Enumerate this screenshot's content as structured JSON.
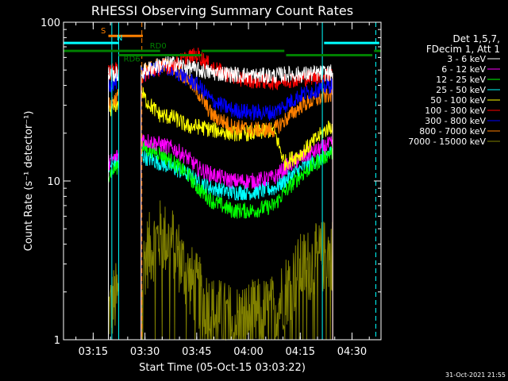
{
  "chart_data": {
    "type": "line",
    "title": "RHESSI Observing Summary Count Rates",
    "xlabel": "Start Time (05-Oct-15 03:03:22)",
    "ylabel": "Count Rate (s⁻¹ detector⁻¹)",
    "x_unit": "minutes",
    "xlim": [
      3.0,
      95.0
    ],
    "ylim": [
      1,
      100
    ],
    "yscale": "log",
    "xticks": [
      {
        "x": 11.6,
        "label": "03:15"
      },
      {
        "x": 26.6,
        "label": "03:30"
      },
      {
        "x": 41.6,
        "label": "03:45"
      },
      {
        "x": 56.6,
        "label": "04:00"
      },
      {
        "x": 71.6,
        "label": "04:15"
      },
      {
        "x": 86.6,
        "label": "04:30"
      }
    ],
    "yticks": [
      {
        "y": 1,
        "label": "1"
      },
      {
        "y": 10,
        "label": "10"
      },
      {
        "y": 100,
        "label": "100"
      }
    ],
    "legend_title": [
      "Det 1,5,7,",
      "FDecim 1, Att 1"
    ],
    "legend_placement": "right",
    "timestamp": "31-Oct-2021 21:55",
    "series": [
      {
        "name": "3 - 6 keV",
        "color": "#ffffff",
        "base": 47,
        "points": [
          [
            16.0,
            47
          ],
          [
            18.0,
            47
          ],
          [
            24.5,
            47
          ],
          [
            27,
            50
          ],
          [
            31,
            54
          ],
          [
            35,
            55
          ],
          [
            39,
            52
          ],
          [
            42,
            50
          ],
          [
            46,
            48
          ],
          [
            52,
            47
          ],
          [
            58,
            46
          ],
          [
            64,
            46
          ],
          [
            67,
            47
          ],
          [
            72,
            47
          ],
          [
            80,
            48
          ]
        ]
      },
      {
        "name": "6 - 12 keV",
        "color": "#ff00ff",
        "base": 15,
        "points": [
          [
            16.0,
            13
          ],
          [
            18.0,
            14
          ],
          [
            24.5,
            19
          ],
          [
            27,
            18
          ],
          [
            31,
            17
          ],
          [
            35,
            16
          ],
          [
            39,
            14
          ],
          [
            42,
            12
          ],
          [
            46,
            11
          ],
          [
            52,
            10
          ],
          [
            58,
            10
          ],
          [
            64,
            10.5
          ],
          [
            67,
            12
          ],
          [
            72,
            14
          ],
          [
            80,
            17
          ]
        ]
      },
      {
        "name": "12 - 25 keV",
        "color": "#00ff00",
        "base": 9,
        "points": [
          [
            16.0,
            11
          ],
          [
            18.0,
            12
          ],
          [
            24.5,
            17
          ],
          [
            27,
            16
          ],
          [
            31,
            15
          ],
          [
            35,
            13
          ],
          [
            39,
            11
          ],
          [
            42,
            9
          ],
          [
            46,
            7.5
          ],
          [
            52,
            6.5
          ],
          [
            58,
            6.5
          ],
          [
            64,
            7
          ],
          [
            67,
            8.5
          ],
          [
            72,
            11
          ],
          [
            80,
            15
          ]
        ]
      },
      {
        "name": "25 - 50 keV",
        "color": "#00ffff",
        "base": 10,
        "points": [
          [
            16.0,
            12
          ],
          [
            18.0,
            13
          ],
          [
            24.5,
            15
          ],
          [
            27,
            14
          ],
          [
            31,
            13
          ],
          [
            35,
            12
          ],
          [
            39,
            11
          ],
          [
            42,
            10
          ],
          [
            46,
            9
          ],
          [
            52,
            8.5
          ],
          [
            58,
            8.5
          ],
          [
            64,
            9
          ],
          [
            67,
            10
          ],
          [
            72,
            12
          ],
          [
            80,
            15
          ]
        ]
      },
      {
        "name": "50 - 100 keV",
        "color": "#ffff00",
        "base": 20,
        "points": [
          [
            16.0,
            28
          ],
          [
            18.0,
            30
          ],
          [
            24.5,
            40
          ],
          [
            27,
            32
          ],
          [
            31,
            26
          ],
          [
            35,
            25
          ],
          [
            39,
            22
          ],
          [
            42,
            22
          ],
          [
            46,
            21
          ],
          [
            52,
            20
          ],
          [
            58,
            20
          ],
          [
            64,
            21
          ],
          [
            67,
            13
          ],
          [
            72,
            15
          ],
          [
            80,
            22
          ]
        ]
      },
      {
        "name": "100 - 300 keV",
        "color": "#ff0000",
        "base": 50,
        "points": [
          [
            16.0,
            48
          ],
          [
            18.0,
            50
          ],
          [
            24.5,
            42
          ],
          [
            27,
            48
          ],
          [
            31,
            52
          ],
          [
            35,
            54
          ],
          [
            39,
            60
          ],
          [
            42,
            62
          ],
          [
            46,
            52
          ],
          [
            52,
            45
          ],
          [
            58,
            43
          ],
          [
            64,
            42
          ],
          [
            67,
            43
          ],
          [
            72,
            44
          ],
          [
            80,
            47
          ]
        ]
      },
      {
        "name": "300 - 800 keV",
        "color": "#0000ff",
        "base": 30,
        "points": [
          [
            16.0,
            40
          ],
          [
            18.0,
            42
          ],
          [
            24.5,
            45
          ],
          [
            27,
            48
          ],
          [
            31,
            52
          ],
          [
            35,
            50
          ],
          [
            39,
            44
          ],
          [
            42,
            40
          ],
          [
            46,
            32
          ],
          [
            52,
            28
          ],
          [
            58,
            27
          ],
          [
            64,
            27
          ],
          [
            67,
            30
          ],
          [
            72,
            35
          ],
          [
            80,
            40
          ]
        ]
      },
      {
        "name": "800 - 7000 keV",
        "color": "#ff8000",
        "base": 35,
        "points": [
          [
            16.0,
            30
          ],
          [
            18.0,
            33
          ],
          [
            24.5,
            46
          ],
          [
            27,
            50
          ],
          [
            31,
            54
          ],
          [
            35,
            52
          ],
          [
            39,
            44
          ],
          [
            42,
            36
          ],
          [
            46,
            26
          ],
          [
            52,
            22
          ],
          [
            58,
            21
          ],
          [
            64,
            21
          ],
          [
            67,
            24
          ],
          [
            72,
            30
          ],
          [
            80,
            35
          ]
        ]
      },
      {
        "name": "7000 - 15000 keV",
        "color": "#808000",
        "base": 3,
        "points": [
          [
            16.0,
            1.5
          ],
          [
            18.0,
            1.8
          ],
          [
            24.5,
            2.0
          ],
          [
            27,
            3.5
          ],
          [
            31,
            4.5
          ],
          [
            35,
            4.0
          ],
          [
            39,
            2.5
          ],
          [
            42,
            2.0
          ],
          [
            46,
            1.5
          ],
          [
            52,
            1.3
          ],
          [
            58,
            1.4
          ],
          [
            64,
            1.5
          ],
          [
            67,
            2.0
          ],
          [
            72,
            2.8
          ],
          [
            80,
            3.5
          ]
        ]
      }
    ],
    "segments": [
      {
        "label": "S",
        "color": "#ff8000",
        "x0": 16.0,
        "x1": 26.0,
        "y": 82,
        "label_x": 13.8
      },
      {
        "label": "N",
        "color": "#00ffff",
        "x0": 3.0,
        "x1": 19.0,
        "y": 74,
        "label_x": 18.4
      },
      {
        "label": "N",
        "color": "#00ffff",
        "x0": 78.5,
        "x1": 94.5,
        "y": 74,
        "label_x": null
      },
      {
        "label": "RD0",
        "color": "#008000",
        "x0": 3.0,
        "x1": 31.0,
        "y": 66,
        "label_x": 28.0
      },
      {
        "label": "RD0",
        "color": "#008000",
        "x0": 43.0,
        "x1": 67.0,
        "y": 66,
        "label_x": null
      },
      {
        "label": "RD0",
        "color": "#008000",
        "x0": 93.0,
        "x1": 95.0,
        "y": 66,
        "label_x": null
      },
      {
        "label": "RD6",
        "color": "#008000",
        "x0": 19.0,
        "x1": 43.0,
        "y": 62,
        "label_x": 20.4
      },
      {
        "label": "RD6",
        "color": "#008000",
        "x0": 67.5,
        "x1": 92.5,
        "y": 62,
        "label_x": null
      }
    ],
    "vlines": [
      {
        "x": 17.0,
        "color": "#00ffff",
        "style": "solid"
      },
      {
        "x": 19.0,
        "color": "#00ffff",
        "style": "solid"
      },
      {
        "x": 78.0,
        "color": "#00ffff",
        "style": "solid"
      },
      {
        "x": 25.7,
        "color": "#ff8000",
        "style": "dashed"
      },
      {
        "x": 93.5,
        "color": "#00ffff",
        "style": "dashed"
      }
    ],
    "data_start": 16.0,
    "data_end": 81.0
  }
}
